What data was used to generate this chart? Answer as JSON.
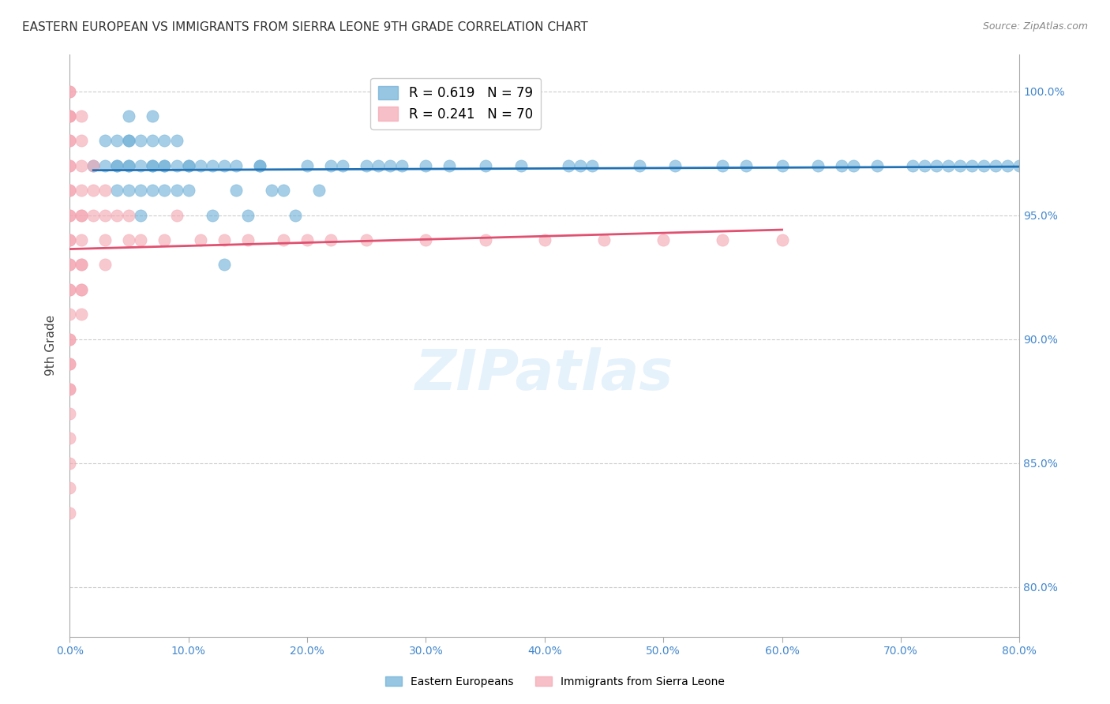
{
  "title": "EASTERN EUROPEAN VS IMMIGRANTS FROM SIERRA LEONE 9TH GRADE CORRELATION CHART",
  "source": "Source: ZipAtlas.com",
  "xlabel_bottom": "",
  "ylabel": "9th Grade",
  "x_tick_labels": [
    "0.0%",
    "10.0%",
    "20.0%",
    "30.0%",
    "40.0%",
    "50.0%",
    "60.0%",
    "70.0%",
    "80.0%"
  ],
  "x_tick_vals": [
    0,
    10,
    20,
    30,
    40,
    50,
    60,
    70,
    80
  ],
  "y_tick_labels": [
    "80.0%",
    "85.0%",
    "90.0%",
    "95.0%",
    "100.0%"
  ],
  "y_tick_vals": [
    80,
    85,
    90,
    95,
    100
  ],
  "xlim": [
    0,
    80
  ],
  "ylim": [
    78,
    101.5
  ],
  "legend_labels": [
    "R = 0.619   N = 79",
    "R = 0.241   N = 70"
  ],
  "legend_colors": [
    "#6baed6",
    "#fb9a99"
  ],
  "series1_color": "#6baed6",
  "series2_color": "#f4a4b0",
  "trendline1_color": "#2171b5",
  "trendline2_color": "#e05070",
  "watermark": "ZIPatlas",
  "background_color": "#ffffff",
  "grid_color": "#cccccc",
  "axis_label_color": "#4488cc",
  "series1_x": [
    2,
    3,
    3,
    4,
    4,
    4,
    4,
    5,
    5,
    5,
    5,
    5,
    5,
    6,
    6,
    6,
    6,
    7,
    7,
    7,
    7,
    7,
    8,
    8,
    8,
    8,
    9,
    9,
    9,
    10,
    10,
    10,
    11,
    12,
    12,
    13,
    13,
    14,
    14,
    15,
    16,
    16,
    17,
    18,
    19,
    20,
    21,
    22,
    23,
    25,
    26,
    27,
    28,
    30,
    32,
    35,
    38,
    42,
    43,
    44,
    48,
    51,
    55,
    57,
    60,
    63,
    65,
    66,
    68,
    71,
    72,
    73,
    74,
    75,
    76,
    77,
    78,
    79,
    80
  ],
  "series1_y": [
    97,
    97,
    98,
    96,
    97,
    97,
    98,
    96,
    97,
    97,
    98,
    98,
    99,
    95,
    96,
    97,
    98,
    96,
    97,
    97,
    98,
    99,
    96,
    97,
    97,
    98,
    96,
    97,
    98,
    96,
    97,
    97,
    97,
    95,
    97,
    93,
    97,
    96,
    97,
    95,
    97,
    97,
    96,
    96,
    95,
    97,
    96,
    97,
    97,
    97,
    97,
    97,
    97,
    97,
    97,
    97,
    97,
    97,
    97,
    97,
    97,
    97,
    97,
    97,
    97,
    97,
    97,
    97,
    97,
    97,
    97,
    97,
    97,
    97,
    97,
    97,
    97,
    97,
    97
  ],
  "series2_x": [
    0,
    0,
    0,
    0,
    0,
    0,
    0,
    0,
    0,
    0,
    0,
    0,
    0,
    0,
    0,
    0,
    0,
    0,
    0,
    0,
    0,
    0,
    0,
    0,
    0,
    0,
    0,
    0,
    0,
    0,
    0,
    1,
    1,
    1,
    1,
    1,
    1,
    1,
    1,
    1,
    1,
    1,
    1,
    2,
    2,
    2,
    3,
    3,
    3,
    3,
    4,
    5,
    5,
    6,
    8,
    9,
    11,
    13,
    15,
    18,
    20,
    22,
    25,
    30,
    35,
    40,
    45,
    50,
    55,
    60
  ],
  "series2_y": [
    100,
    100,
    99,
    99,
    99,
    98,
    98,
    97,
    97,
    96,
    96,
    95,
    95,
    94,
    94,
    93,
    93,
    92,
    92,
    91,
    90,
    90,
    89,
    89,
    88,
    88,
    87,
    86,
    85,
    84,
    83,
    99,
    98,
    97,
    96,
    95,
    95,
    94,
    93,
    93,
    92,
    92,
    91,
    97,
    96,
    95,
    96,
    95,
    94,
    93,
    95,
    95,
    94,
    94,
    94,
    95,
    94,
    94,
    94,
    94,
    94,
    94,
    94,
    94,
    94,
    94,
    94,
    94,
    94,
    94
  ]
}
